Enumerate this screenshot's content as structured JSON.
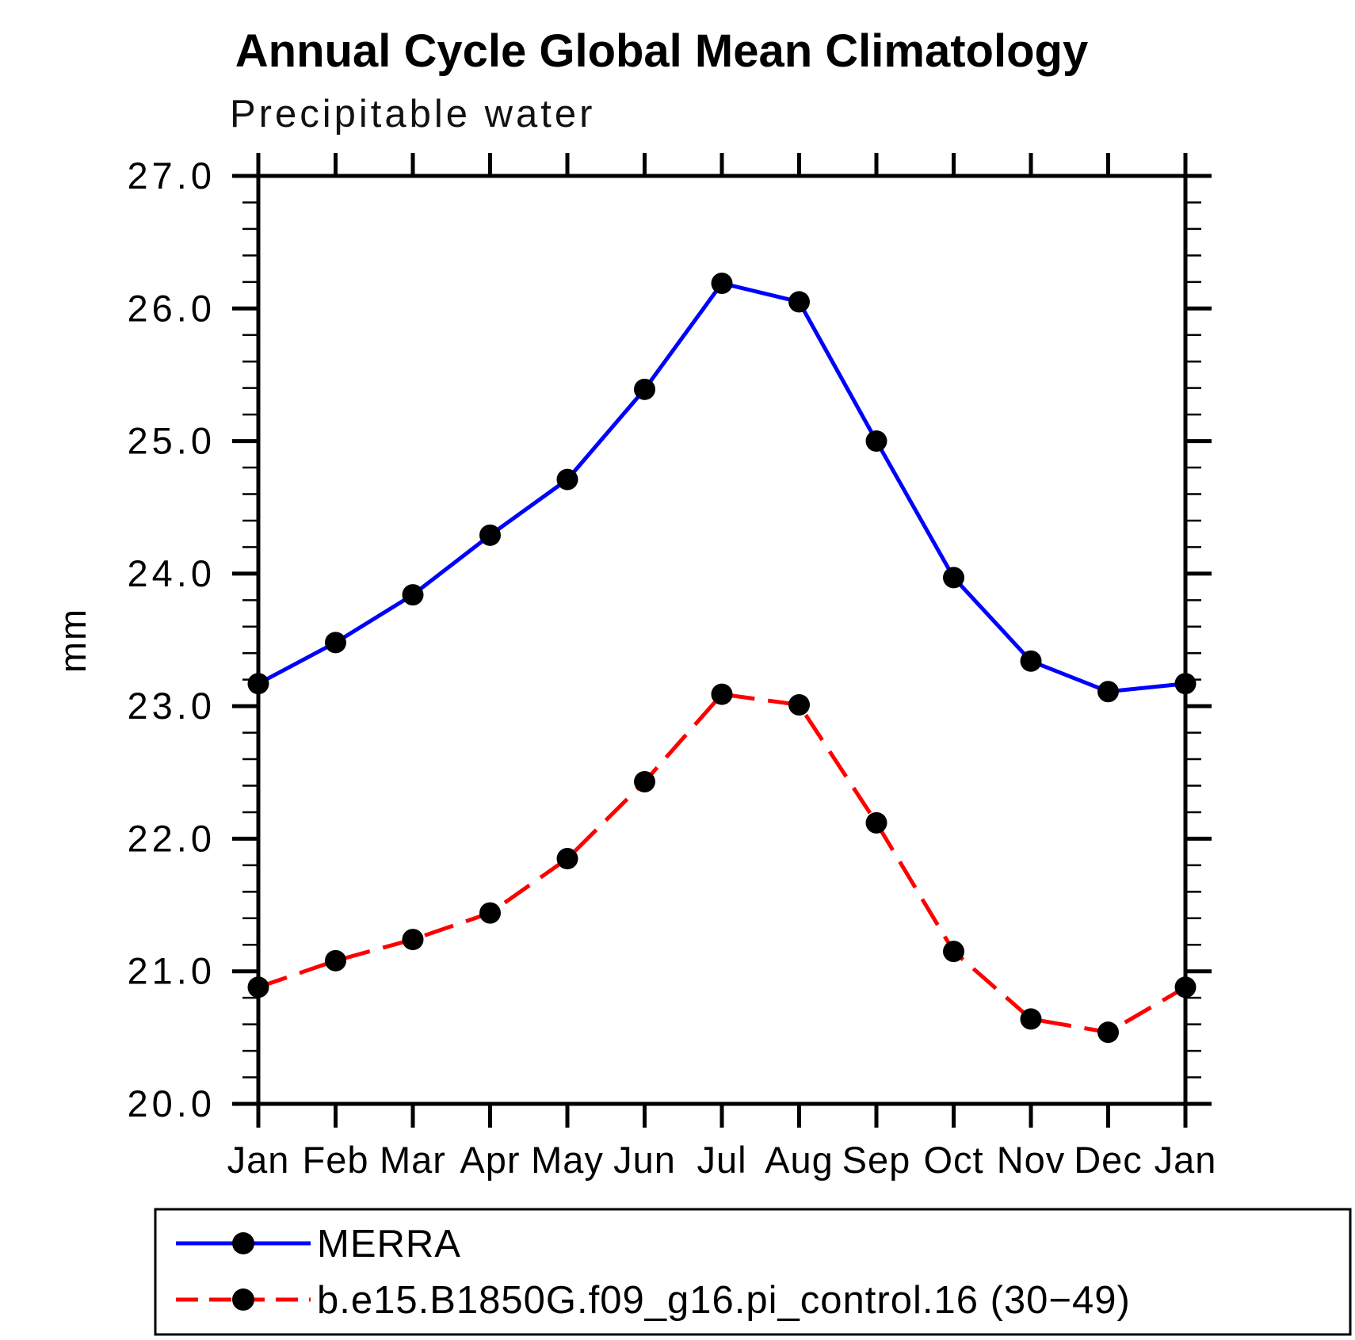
{
  "title": "Annual Cycle Global Mean Climatology",
  "subtitle": "Precipitable water",
  "ylabel": "mm",
  "chart_data": {
    "type": "line",
    "x_categories": [
      "Jan",
      "Feb",
      "Mar",
      "Apr",
      "May",
      "Jun",
      "Jul",
      "Aug",
      "Sep",
      "Oct",
      "Nov",
      "Dec",
      "Jan"
    ],
    "ylim": [
      20.0,
      27.0
    ],
    "ytick_major_interval": 1.0,
    "ytick_minor_interval": 0.2,
    "ytick_labels": [
      "20.0",
      "21.0",
      "22.0",
      "23.0",
      "24.0",
      "25.0",
      "26.0",
      "27.0"
    ],
    "grid": "off",
    "legend_position": "bottom-left-box",
    "series": [
      {
        "name": "MERRA",
        "color": "#0000ff",
        "line_style": "solid",
        "marker": "filled-circle",
        "marker_color": "#000000",
        "values": [
          23.17,
          23.48,
          23.84,
          24.29,
          24.71,
          25.39,
          26.19,
          26.05,
          25.0,
          23.97,
          23.34,
          23.11,
          23.17
        ]
      },
      {
        "name": "b.e15.B1850G.f09_g16.pi_control.16 (30−49)",
        "color": "#ff0000",
        "line_style": "dashed",
        "marker": "filled-circle",
        "marker_color": "#000000",
        "values": [
          20.88,
          21.08,
          21.24,
          21.44,
          21.85,
          22.43,
          23.09,
          23.01,
          22.12,
          21.15,
          20.64,
          20.54,
          20.88
        ]
      }
    ]
  }
}
